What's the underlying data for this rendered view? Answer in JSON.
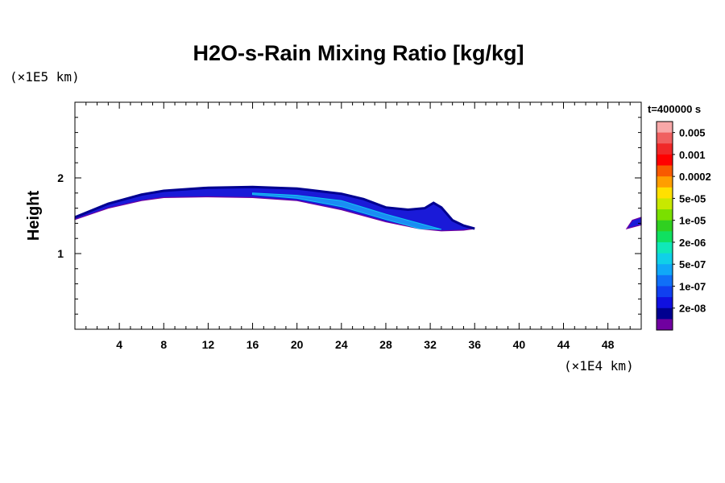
{
  "chart_data": {
    "type": "contour",
    "title": "H2O-s-Rain Mixing Ratio [kg/kg]",
    "xlabel": "",
    "ylabel": "Height",
    "x_unit": "(×1E4 km)",
    "y_unit": "(×1E5 km)",
    "x_ticks": [
      4,
      8,
      12,
      16,
      20,
      24,
      28,
      32,
      36,
      40,
      44,
      48
    ],
    "y_ticks": [
      1,
      2
    ],
    "xlim": [
      0,
      51
    ],
    "ylim": [
      0,
      3
    ],
    "time_label": "t=400000 s",
    "legend_position": "right",
    "grid": false,
    "colorbar": {
      "labels": [
        "0.005",
        "0.001",
        "0.0002",
        "5e-05",
        "1e-05",
        "2e-06",
        "5e-07",
        "1e-07",
        "2e-08"
      ],
      "colors_top_to_bottom": [
        "#f8a8a8",
        "#f06060",
        "#f02828",
        "#ff0000",
        "#f85a00",
        "#ff9e00",
        "#ffe000",
        "#c8e800",
        "#7ae000",
        "#30d020",
        "#10e060",
        "#10e8b8",
        "#10d0e8",
        "#10a8f8",
        "#1070f8",
        "#1040f0",
        "#1010e0",
        "#000090",
        "#7000a0"
      ]
    },
    "band": {
      "upper": [
        [
          0,
          1.48
        ],
        [
          3,
          1.66
        ],
        [
          6,
          1.78
        ],
        [
          8,
          1.83
        ],
        [
          12,
          1.87
        ],
        [
          16,
          1.88
        ],
        [
          20,
          1.86
        ],
        [
          24,
          1.79
        ],
        [
          26,
          1.72
        ],
        [
          28,
          1.61
        ],
        [
          30,
          1.58
        ],
        [
          31.5,
          1.6
        ],
        [
          32.3,
          1.67
        ],
        [
          33,
          1.61
        ],
        [
          34,
          1.44
        ],
        [
          35,
          1.37
        ],
        [
          36,
          1.33
        ]
      ],
      "lower": [
        [
          0,
          1.45
        ],
        [
          3,
          1.6
        ],
        [
          6,
          1.7
        ],
        [
          8,
          1.74
        ],
        [
          12,
          1.75
        ],
        [
          16,
          1.74
        ],
        [
          20,
          1.7
        ],
        [
          24,
          1.58
        ],
        [
          28,
          1.42
        ],
        [
          31,
          1.33
        ],
        [
          33,
          1.3
        ],
        [
          35,
          1.31
        ],
        [
          36,
          1.33
        ]
      ],
      "core": [
        [
          16,
          1.8
        ],
        [
          20,
          1.77
        ],
        [
          24,
          1.7
        ],
        [
          28,
          1.52
        ],
        [
          31,
          1.4
        ],
        [
          33,
          1.32
        ],
        [
          31,
          1.33
        ],
        [
          28,
          1.45
        ],
        [
          24,
          1.62
        ],
        [
          20,
          1.73
        ],
        [
          16,
          1.78
        ]
      ],
      "second_band": [
        [
          49.7,
          1.33
        ],
        [
          50.2,
          1.44
        ],
        [
          51,
          1.48
        ],
        [
          51,
          1.38
        ]
      ]
    }
  }
}
